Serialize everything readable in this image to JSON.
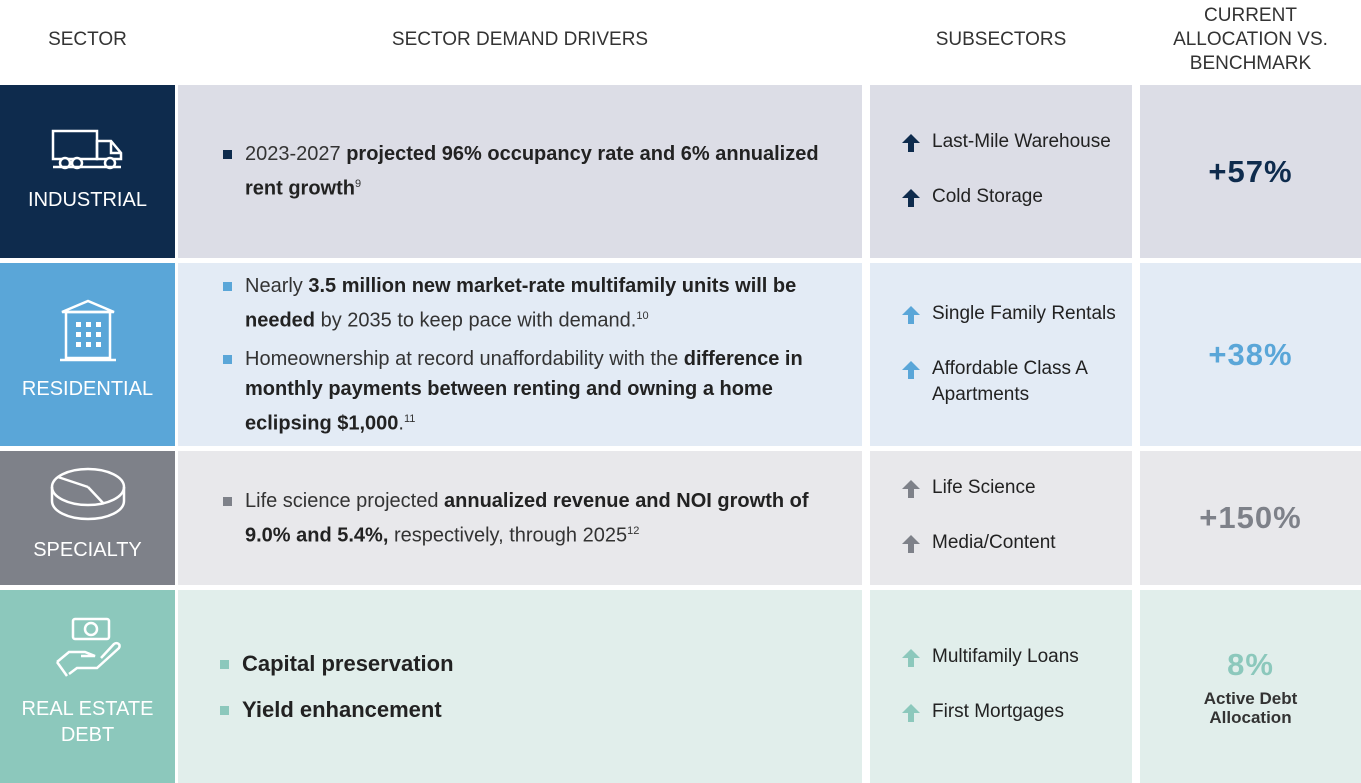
{
  "header": [
    "SECTOR",
    "SECTOR DEMAND DRIVERS",
    "SUBSECTORS",
    "CURRENT ALLOCATION VS. BENCHMARK"
  ],
  "rows": [
    {
      "sector": "INDUSTRIAL",
      "color": "#0e2b4d",
      "background": "#dcdde6",
      "drivers": [
        [
          {
            "text": "2023-2027 ",
            "bold": false
          },
          {
            "text": "projected 96% occupancy rate and 6% annualized rent growth",
            "bold": true
          },
          {
            "text": "9",
            "sup": true
          }
        ]
      ],
      "subsectors": [
        "Last-Mile Warehouse",
        "Cold Storage"
      ],
      "allocation": "+57%"
    },
    {
      "sector": "RESIDENTIAL",
      "color": "#5aa6d8",
      "background": "#e3ebf5",
      "drivers": [
        [
          {
            "text": "Nearly ",
            "bold": false
          },
          {
            "text": "3.5 million new market-rate multifamily units will be needed",
            "bold": true
          },
          {
            "text": " by 2035 to keep pace with demand.",
            "bold": false
          },
          {
            "text": "10",
            "sup": true
          }
        ],
        [
          {
            "text": "Homeownership at record unaffordability with the ",
            "bold": false
          },
          {
            "text": "difference in monthly payments between renting and owning a home eclipsing $1,000",
            "bold": true
          },
          {
            "text": ".",
            "bold": false
          },
          {
            "text": "11",
            "sup": true
          }
        ]
      ],
      "subsectors": [
        "Single Family Rentals",
        "Affordable Class A Apartments"
      ],
      "allocation": "+38%"
    },
    {
      "sector": "SPECIALTY",
      "color": "#7e8189",
      "background": "#e8e8eb",
      "drivers": [
        [
          {
            "text": "Life science projected ",
            "bold": false
          },
          {
            "text": "annualized revenue and NOI growth of 9.0% and 5.4%,",
            "bold": true
          },
          {
            "text": " respectively, through 2025",
            "bold": false
          },
          {
            "text": "12",
            "sup": true
          }
        ]
      ],
      "subsectors": [
        "Life Science",
        "Media/Content"
      ],
      "allocation": "+150%"
    },
    {
      "sector": "REAL ESTATE DEBT",
      "color": "#8cc8bc",
      "background": "#e1eeeb",
      "drivers": [
        [
          {
            "text": "Capital preservation",
            "bold": true
          }
        ],
        [
          {
            "text": "Yield enhancement",
            "bold": true
          }
        ]
      ],
      "subsectors": [
        "Multifamily Loans",
        "First Mortgages"
      ],
      "allocation": "8%",
      "allocation_note": "Active Debt Allocation"
    }
  ]
}
